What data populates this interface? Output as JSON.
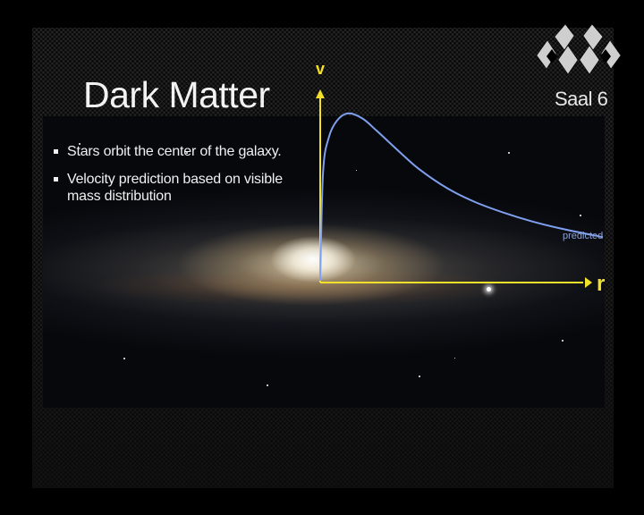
{
  "slide": {
    "title": "Dark Matter",
    "bullets": [
      "Stars orbit the center of the galaxy.",
      "Velocity prediction based on visible mass distribution"
    ]
  },
  "channel": {
    "logo_icon": "channel-logo-icon",
    "room_label": "Saal 6"
  },
  "colors": {
    "axis": "#f2e02a",
    "curve": "#7f9fef",
    "curve_label": "#8aa2d6",
    "title": "#f2f2f2"
  },
  "chart_data": {
    "type": "line",
    "xlabel": "r",
    "ylabel": "v",
    "series": [
      {
        "name": "predicted",
        "x": [
          0,
          0.01,
          0.03,
          0.06,
          0.1,
          0.15,
          0.2,
          0.28,
          0.35,
          0.45,
          0.55,
          0.65,
          0.75,
          0.85,
          1.0
        ],
        "y": [
          0,
          0.62,
          0.82,
          0.92,
          0.96,
          0.93,
          0.86,
          0.74,
          0.64,
          0.53,
          0.45,
          0.39,
          0.34,
          0.3,
          0.25
        ]
      }
    ],
    "grid": false,
    "ticks": false
  }
}
